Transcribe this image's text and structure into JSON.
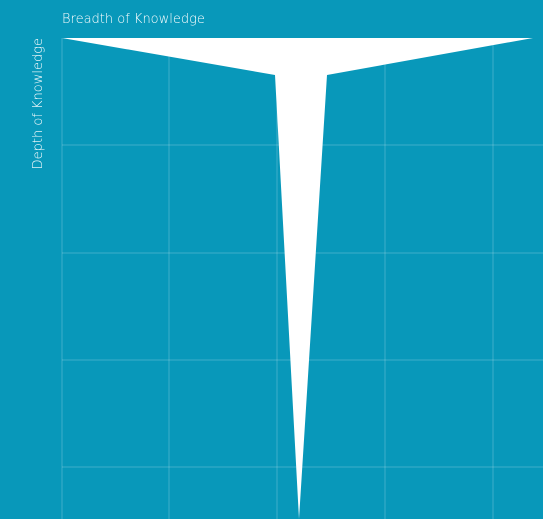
{
  "axes": {
    "x_label": "Breadth of Knowledge",
    "y_label": "Depth of Knowledge"
  }
}
